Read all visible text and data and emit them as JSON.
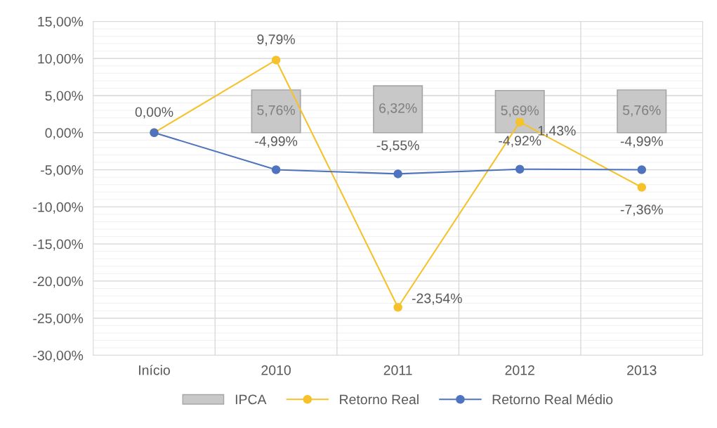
{
  "chart_data": {
    "type": "line",
    "categories": [
      "Início",
      "2010",
      "2011",
      "2012",
      "2013"
    ],
    "series": [
      {
        "name": "IPCA",
        "type": "bar",
        "color": "#c8c8c8",
        "values": [
          null,
          5.76,
          6.32,
          5.69,
          5.76
        ],
        "value_labels": [
          null,
          "5,76%",
          "6,32%",
          "5,69%",
          "5,76%"
        ]
      },
      {
        "name": "Retorno Real",
        "color": "#f5c22b",
        "values": [
          0,
          9.79,
          -23.54,
          1.43,
          -7.36
        ],
        "value_labels": [
          "0,00%",
          "9,79%",
          "-23,54%",
          "1,43%",
          "-7,36%"
        ]
      },
      {
        "name": "Retorno Real Médio",
        "color": "#4f73be",
        "values": [
          0,
          -4.99,
          -5.55,
          -4.92,
          -4.99
        ],
        "value_labels": [
          null,
          "-4,99%",
          "-5,55%",
          "-4,92%",
          "-4,99%"
        ]
      }
    ],
    "ylim": [
      -30,
      15
    ],
    "yticks": [
      {
        "value": -30,
        "label": "-30,00%"
      },
      {
        "value": -25,
        "label": "-25,00%"
      },
      {
        "value": -20,
        "label": "-20,00%"
      },
      {
        "value": -15,
        "label": "-15,00%"
      },
      {
        "value": -10,
        "label": "-10,00%"
      },
      {
        "value": -5,
        "label": "-5,00%"
      },
      {
        "value": 0,
        "label": "0,00%"
      },
      {
        "value": 5,
        "label": "5,00%"
      },
      {
        "value": 10,
        "label": "10,00%"
      },
      {
        "value": 15,
        "label": "15,00%"
      }
    ],
    "grid": true,
    "legend": "bottom",
    "marker": "circle",
    "line_style": "solid"
  }
}
